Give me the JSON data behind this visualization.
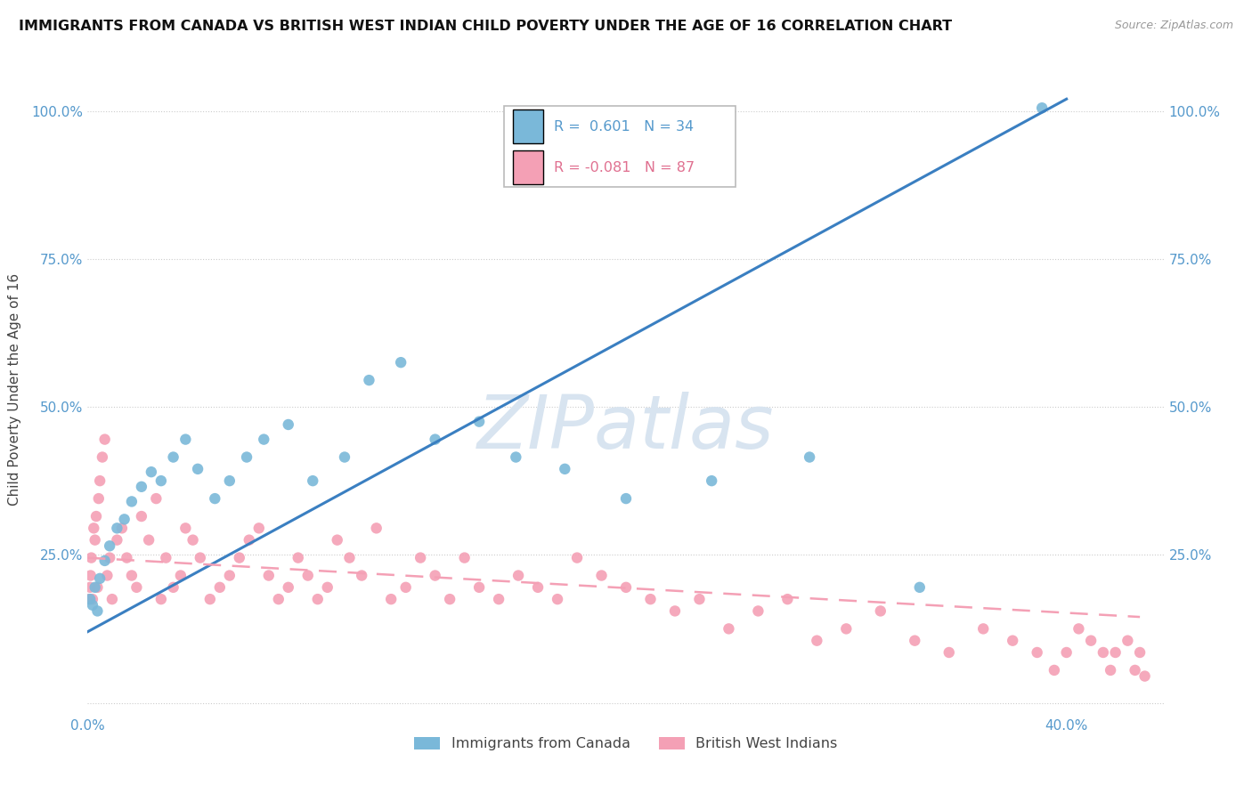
{
  "title": "IMMIGRANTS FROM CANADA VS BRITISH WEST INDIAN CHILD POVERTY UNDER THE AGE OF 16 CORRELATION CHART",
  "source": "Source: ZipAtlas.com",
  "ylabel": "Child Poverty Under the Age of 16",
  "legend_label_blue": "Immigrants from Canada",
  "legend_label_pink": "British West Indians",
  "R_blue": 0.601,
  "N_blue": 34,
  "R_pink": -0.081,
  "N_pink": 87,
  "blue_color": "#7ab8d9",
  "pink_color": "#f4a0b5",
  "blue_line_color": "#3a7fc1",
  "pink_line_color": "#f4a0b5",
  "watermark_color": "#d8e4f0",
  "blue_scatter_x": [
    0.001,
    0.002,
    0.003,
    0.004,
    0.005,
    0.007,
    0.009,
    0.012,
    0.015,
    0.018,
    0.022,
    0.026,
    0.03,
    0.035,
    0.04,
    0.045,
    0.052,
    0.058,
    0.065,
    0.072,
    0.082,
    0.092,
    0.105,
    0.115,
    0.128,
    0.142,
    0.16,
    0.175,
    0.195,
    0.22,
    0.255,
    0.295,
    0.34,
    0.39
  ],
  "blue_scatter_y": [
    0.175,
    0.165,
    0.195,
    0.155,
    0.21,
    0.24,
    0.265,
    0.295,
    0.31,
    0.34,
    0.365,
    0.39,
    0.375,
    0.415,
    0.445,
    0.395,
    0.345,
    0.375,
    0.415,
    0.445,
    0.47,
    0.375,
    0.415,
    0.545,
    0.575,
    0.445,
    0.475,
    0.415,
    0.395,
    0.345,
    0.375,
    0.415,
    0.195,
    1.005
  ],
  "pink_scatter_x": [
    0.0005,
    0.001,
    0.0012,
    0.0015,
    0.002,
    0.0025,
    0.003,
    0.0035,
    0.004,
    0.0045,
    0.005,
    0.006,
    0.007,
    0.008,
    0.009,
    0.01,
    0.012,
    0.014,
    0.016,
    0.018,
    0.02,
    0.022,
    0.025,
    0.028,
    0.03,
    0.032,
    0.035,
    0.038,
    0.04,
    0.043,
    0.046,
    0.05,
    0.054,
    0.058,
    0.062,
    0.066,
    0.07,
    0.074,
    0.078,
    0.082,
    0.086,
    0.09,
    0.094,
    0.098,
    0.102,
    0.107,
    0.112,
    0.118,
    0.124,
    0.13,
    0.136,
    0.142,
    0.148,
    0.154,
    0.16,
    0.168,
    0.176,
    0.184,
    0.192,
    0.2,
    0.21,
    0.22,
    0.23,
    0.24,
    0.25,
    0.262,
    0.274,
    0.286,
    0.298,
    0.31,
    0.324,
    0.338,
    0.352,
    0.366,
    0.378,
    0.388,
    0.395,
    0.4,
    0.405,
    0.41,
    0.415,
    0.418,
    0.42,
    0.425,
    0.428,
    0.43,
    0.432
  ],
  "pink_scatter_y": [
    0.175,
    0.195,
    0.215,
    0.245,
    0.175,
    0.295,
    0.275,
    0.315,
    0.195,
    0.345,
    0.375,
    0.415,
    0.445,
    0.215,
    0.245,
    0.175,
    0.275,
    0.295,
    0.245,
    0.215,
    0.195,
    0.315,
    0.275,
    0.345,
    0.175,
    0.245,
    0.195,
    0.215,
    0.295,
    0.275,
    0.245,
    0.175,
    0.195,
    0.215,
    0.245,
    0.275,
    0.295,
    0.215,
    0.175,
    0.195,
    0.245,
    0.215,
    0.175,
    0.195,
    0.275,
    0.245,
    0.215,
    0.295,
    0.175,
    0.195,
    0.245,
    0.215,
    0.175,
    0.245,
    0.195,
    0.175,
    0.215,
    0.195,
    0.175,
    0.245,
    0.215,
    0.195,
    0.175,
    0.155,
    0.175,
    0.125,
    0.155,
    0.175,
    0.105,
    0.125,
    0.155,
    0.105,
    0.085,
    0.125,
    0.105,
    0.085,
    0.055,
    0.085,
    0.125,
    0.105,
    0.085,
    0.055,
    0.085,
    0.105,
    0.055,
    0.085,
    0.045
  ],
  "xlim": [
    0.0,
    0.44
  ],
  "ylim": [
    -0.02,
    1.08
  ],
  "x_ticks": [
    0.0,
    0.1,
    0.2,
    0.3,
    0.4
  ],
  "y_ticks": [
    0.0,
    0.25,
    0.5,
    0.75,
    1.0
  ],
  "blue_trend_x": [
    0.0,
    0.4
  ],
  "blue_trend_y": [
    0.12,
    1.02
  ],
  "pink_trend_x": [
    0.0,
    0.43
  ],
  "pink_trend_y": [
    0.245,
    0.145
  ]
}
